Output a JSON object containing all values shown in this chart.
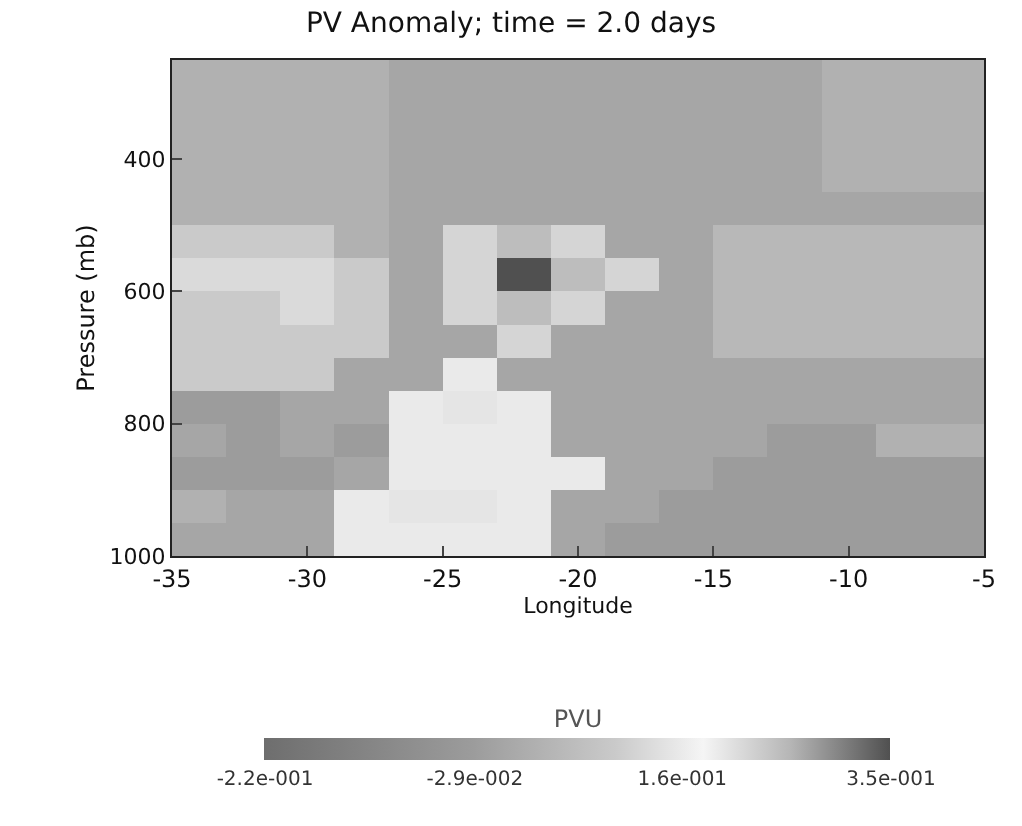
{
  "chart_data": {
    "type": "heatmap",
    "title": "PV Anomaly; time = 2.0 days",
    "xlabel": "Longitude",
    "ylabel": "Pressure (mb)",
    "clabel": "PVU",
    "x": [
      -34,
      -32,
      -30,
      -28,
      -26,
      -24,
      -22,
      -20,
      -18,
      -16,
      -14,
      -12,
      -10,
      -8,
      -6
    ],
    "y": [
      275,
      325,
      375,
      425,
      475,
      525,
      575,
      625,
      675,
      725,
      775,
      825,
      875,
      925,
      975
    ],
    "cells": [
      [
        0.03,
        0.03,
        0.03,
        0.03,
        0,
        0,
        0,
        0,
        0,
        0,
        0,
        0,
        0.03,
        0.03,
        0.03
      ],
      [
        0.03,
        0.03,
        0.03,
        0.03,
        0,
        0,
        0,
        0,
        0,
        0,
        0,
        0,
        0.03,
        0.03,
        0.03
      ],
      [
        0.03,
        0.03,
        0.03,
        0.03,
        0,
        0,
        0,
        0,
        0,
        0,
        0,
        0,
        0.03,
        0.03,
        0.03
      ],
      [
        0.03,
        0.03,
        0.03,
        0.03,
        0,
        0,
        0,
        0,
        0,
        0,
        0,
        0,
        0.03,
        0.03,
        0.03
      ],
      [
        0.03,
        0.03,
        0.03,
        0.03,
        0,
        0,
        0,
        0,
        0,
        0,
        0,
        0,
        0,
        0,
        0
      ],
      [
        0.1,
        0.1,
        0.1,
        0.03,
        0,
        0.12,
        0.25,
        0.12,
        0,
        0,
        0.05,
        0.05,
        0.05,
        0.05,
        0.05
      ],
      [
        0.13,
        0.13,
        0.13,
        0.1,
        0,
        0.12,
        0.35,
        0.25,
        0.12,
        0,
        0.05,
        0.05,
        0.05,
        0.05,
        0.05
      ],
      [
        0.1,
        0.1,
        0.13,
        0.1,
        0,
        0.12,
        0.25,
        0.12,
        0,
        0,
        0.05,
        0.05,
        0.05,
        0.05,
        0.05
      ],
      [
        0.1,
        0.1,
        0.1,
        0.1,
        0,
        0,
        0.12,
        0,
        0,
        0,
        0.05,
        0.05,
        0.05,
        0.05,
        0.05
      ],
      [
        0.1,
        0.1,
        0.1,
        0,
        0,
        0.16,
        0,
        0,
        0,
        0,
        0,
        0,
        0,
        0,
        0
      ],
      [
        -0.03,
        -0.03,
        0,
        0,
        0.16,
        0.2,
        0.16,
        0,
        0,
        0,
        0,
        0,
        0,
        0,
        0
      ],
      [
        0,
        -0.03,
        0,
        -0.03,
        0.16,
        0.16,
        0.16,
        0,
        0,
        0,
        0,
        -0.03,
        -0.03,
        0.03,
        0.03
      ],
      [
        -0.03,
        -0.03,
        -0.03,
        0,
        0.16,
        0.16,
        0.16,
        0.16,
        0,
        0,
        -0.03,
        -0.03,
        -0.03,
        -0.03,
        -0.03
      ],
      [
        0.03,
        0,
        0,
        0.16,
        0.2,
        0.2,
        0.16,
        0,
        0,
        -0.03,
        -0.03,
        -0.03,
        -0.03,
        -0.03,
        -0.03
      ],
      [
        0,
        0,
        0,
        0.16,
        0.16,
        0.16,
        0.16,
        0,
        -0.03,
        -0.03,
        -0.03,
        -0.03,
        -0.03,
        -0.03,
        -0.03
      ]
    ],
    "xlim": [
      -35,
      -5
    ],
    "xticks": [
      -35,
      -30,
      -25,
      -20,
      -15,
      -10,
      -5
    ],
    "ylim": [
      1000,
      250
    ],
    "yticks": [
      400,
      600,
      800,
      1000
    ],
    "clim": [
      -0.22,
      0.35
    ],
    "cticks": [
      {
        "value": -0.22,
        "label": "-2.2e-001"
      },
      {
        "value": -0.029,
        "label": "-2.9e-002"
      },
      {
        "value": 0.16,
        "label": "1.6e-001"
      },
      {
        "value": 0.35,
        "label": "3.5e-001"
      }
    ]
  }
}
